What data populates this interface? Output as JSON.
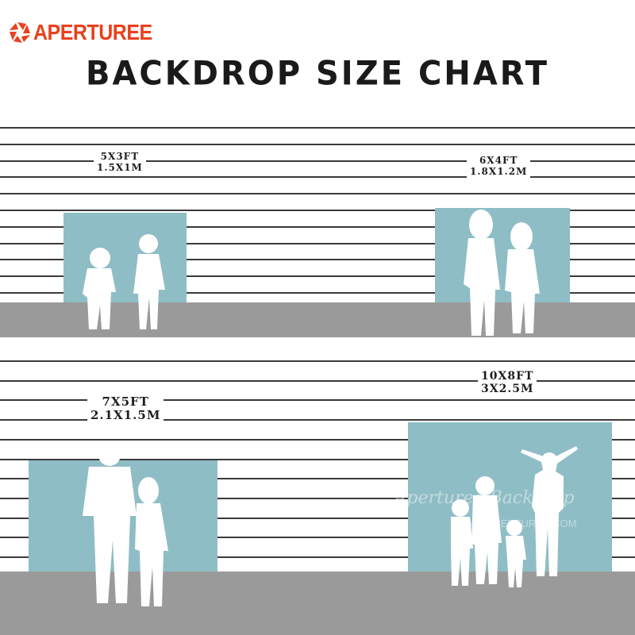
{
  "logo": {
    "text": "APERTUREE",
    "color": "#e8411e"
  },
  "title": "BACKDROP SIZE CHART",
  "colors": {
    "backdrop": "#8fbdc5",
    "floor": "#9a9a9a",
    "lines": "#3a3a3a"
  },
  "sizes": [
    {
      "ft": "5X3FT",
      "m": "1.5X1M"
    },
    {
      "ft": "6X4FT",
      "m": "1.8X1.2M"
    },
    {
      "ft": "7X5FT",
      "m": "2.1X1.5M"
    },
    {
      "ft": "10X8FT",
      "m": "3X2.5M"
    }
  ],
  "watermark": {
    "script": "Aperturee Backdrop",
    "url": "WWW.APERTUREE.COM"
  }
}
